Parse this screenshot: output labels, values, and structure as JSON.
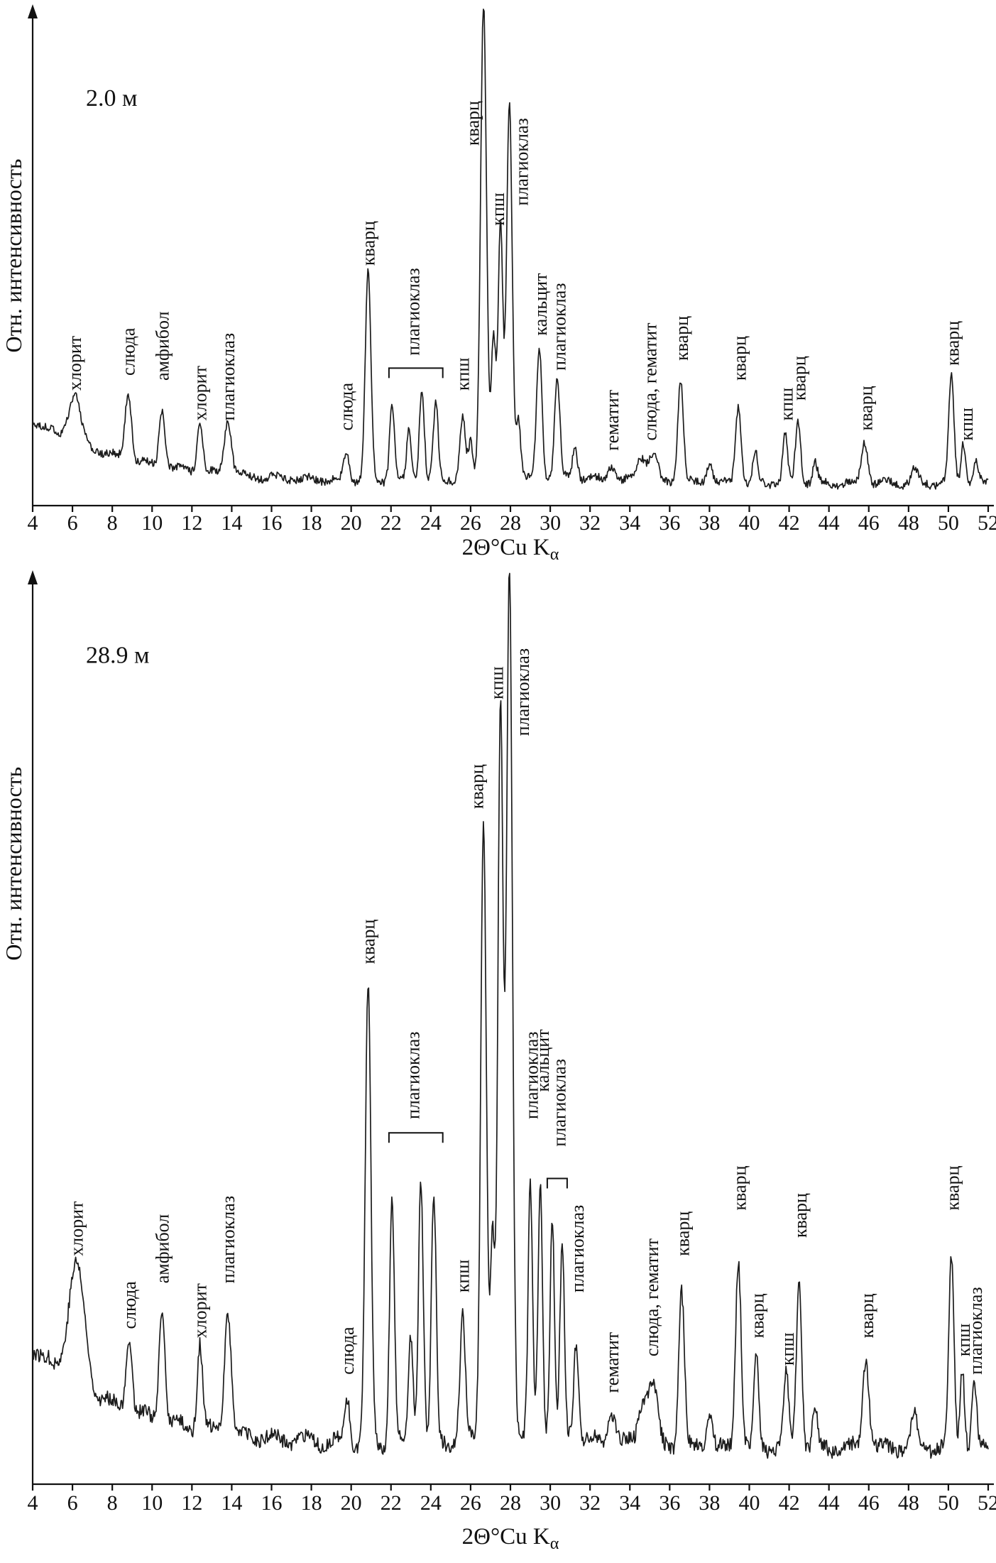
{
  "figure": {
    "y_axis_title": "Отн. интенсивность",
    "x_axis_title_main": "2Θ°Cu K",
    "x_axis_title_sub": "α",
    "x_range": [
      4,
      52
    ],
    "x_ticks": [
      4,
      6,
      8,
      10,
      12,
      14,
      16,
      18,
      20,
      22,
      24,
      26,
      28,
      30,
      32,
      34,
      36,
      38,
      40,
      42,
      44,
      46,
      48,
      50,
      52
    ],
    "ink_color": "#111111"
  },
  "chart_data": [
    {
      "type": "line",
      "title": "2.0 м",
      "xlabel": "2Θ°Cu Kα",
      "ylabel": "Отн. интенсивность",
      "xlim": [
        4,
        52
      ],
      "x_tick_step": 2,
      "grid": false,
      "legend": "none",
      "peak_columns": [
        "two_theta_deg",
        "height_frac_of_plot",
        "sigma_deg",
        "mineral"
      ],
      "peaks": [
        [
          6.1,
          0.095,
          0.3,
          "хлорит"
        ],
        [
          8.8,
          0.135,
          0.16,
          "слюда"
        ],
        [
          10.5,
          0.115,
          0.14,
          "амфибол"
        ],
        [
          12.4,
          0.095,
          0.14,
          "хлорит"
        ],
        [
          13.8,
          0.11,
          0.18,
          "плагиоклаз"
        ],
        [
          19.75,
          0.055,
          0.13,
          "слюда"
        ],
        [
          20.85,
          0.42,
          0.14,
          "кварц"
        ],
        [
          22.05,
          0.155,
          0.12,
          "плагиоклаз"
        ],
        [
          22.9,
          0.1,
          0.11,
          "плагиоклаз"
        ],
        [
          23.55,
          0.185,
          0.12,
          "плагиоклаз"
        ],
        [
          24.25,
          0.15,
          0.12,
          "плагиоклаз"
        ],
        [
          25.6,
          0.125,
          0.13,
          "кпш"
        ],
        [
          26.0,
          0.07,
          0.11,
          ""
        ],
        [
          26.65,
          0.95,
          0.15,
          "кварц"
        ],
        [
          27.15,
          0.28,
          0.11,
          ""
        ],
        [
          27.5,
          0.5,
          0.12,
          "кпш"
        ],
        [
          27.95,
          0.75,
          0.14,
          "плагиоклаз"
        ],
        [
          28.4,
          0.12,
          0.11,
          ""
        ],
        [
          29.45,
          0.26,
          0.13,
          "кальцит"
        ],
        [
          30.35,
          0.2,
          0.13,
          "плагиоклаз"
        ],
        [
          31.25,
          0.06,
          0.13,
          ""
        ],
        [
          33.1,
          0.03,
          0.18,
          "гематит"
        ],
        [
          34.6,
          0.05,
          0.25,
          "слюда, гематит"
        ],
        [
          35.2,
          0.055,
          0.2,
          "слюда, гематит"
        ],
        [
          36.55,
          0.21,
          0.14,
          "кварц"
        ],
        [
          38.0,
          0.045,
          0.14,
          ""
        ],
        [
          39.45,
          0.155,
          0.14,
          "кварц"
        ],
        [
          40.3,
          0.06,
          0.12,
          ""
        ],
        [
          41.8,
          0.095,
          0.12,
          "кпш"
        ],
        [
          42.45,
          0.125,
          0.13,
          "кварц"
        ],
        [
          43.3,
          0.04,
          0.12,
          ""
        ],
        [
          45.8,
          0.085,
          0.16,
          "кварц"
        ],
        [
          48.3,
          0.03,
          0.15,
          ""
        ],
        [
          50.15,
          0.21,
          0.13,
          "кварц"
        ],
        [
          50.75,
          0.085,
          0.11,
          "кпш"
        ],
        [
          51.4,
          0.04,
          0.12,
          ""
        ]
      ],
      "label_columns": [
        "two_theta_deg",
        "text_bottom_frac_of_plot",
        "text"
      ],
      "peak_labels": [
        [
          6.1,
          0.23,
          "хлорит"
        ],
        [
          8.8,
          0.26,
          "слюда"
        ],
        [
          10.5,
          0.25,
          "амфибол"
        ],
        [
          12.4,
          0.17,
          "хлорит"
        ],
        [
          13.8,
          0.17,
          "плагиоклаз"
        ],
        [
          19.75,
          0.15,
          "слюда"
        ],
        [
          20.85,
          0.48,
          "кварц"
        ],
        [
          23.1,
          0.3,
          "плагиоклаз"
        ],
        [
          25.6,
          0.23,
          "кпш"
        ],
        [
          26.1,
          0.72,
          "кварц"
        ],
        [
          27.35,
          0.56,
          "кпш"
        ],
        [
          28.55,
          0.6,
          "плагиоклаз"
        ],
        [
          29.5,
          0.34,
          "кальцит"
        ],
        [
          30.45,
          0.27,
          "плагиоклаз"
        ],
        [
          33.1,
          0.11,
          "гематит"
        ],
        [
          35.0,
          0.13,
          "слюда, гематит"
        ],
        [
          36.6,
          0.29,
          "кварц"
        ],
        [
          39.5,
          0.25,
          "кварц"
        ],
        [
          41.85,
          0.17,
          "кпш"
        ],
        [
          42.5,
          0.21,
          "кварц"
        ],
        [
          45.85,
          0.15,
          "кварц"
        ],
        [
          50.2,
          0.28,
          "кварц"
        ],
        [
          50.9,
          0.13,
          "кпш"
        ]
      ],
      "brackets": [
        {
          "x1": 21.9,
          "x2": 24.6,
          "y": 0.275
        }
      ]
    },
    {
      "type": "line",
      "title": "28.9 м",
      "xlabel": "2Θ°Cu Kα",
      "ylabel": "Отн. интенсивность",
      "xlim": [
        4,
        52
      ],
      "x_tick_step": 2,
      "grid": false,
      "legend": "none",
      "peak_columns": [
        "two_theta_deg",
        "height_frac_of_plot",
        "sigma_deg",
        "mineral"
      ],
      "peaks": [
        [
          6.2,
          0.13,
          0.4,
          "хлорит"
        ],
        [
          8.85,
          0.085,
          0.14,
          "слюда"
        ],
        [
          10.5,
          0.125,
          0.14,
          "амфибол"
        ],
        [
          12.4,
          0.095,
          0.13,
          "хлорит"
        ],
        [
          13.8,
          0.135,
          0.17,
          "плагиоклаз"
        ],
        [
          19.8,
          0.05,
          0.13,
          "слюда"
        ],
        [
          20.85,
          0.5,
          0.14,
          "кварц"
        ],
        [
          22.05,
          0.27,
          0.12,
          "плагиоклаз"
        ],
        [
          23.0,
          0.12,
          0.11,
          "плагиоклаз"
        ],
        [
          23.5,
          0.29,
          0.12,
          "плагиоклаз"
        ],
        [
          24.15,
          0.27,
          0.12,
          "плагиоклаз"
        ],
        [
          25.6,
          0.135,
          0.13,
          "кпш"
        ],
        [
          26.65,
          0.68,
          0.14,
          "кварц"
        ],
        [
          27.1,
          0.22,
          0.11,
          ""
        ],
        [
          27.5,
          0.8,
          0.13,
          "кпш"
        ],
        [
          27.95,
          0.95,
          0.15,
          "плагиоклаз"
        ],
        [
          29.0,
          0.27,
          0.11,
          "плагиоклаз"
        ],
        [
          29.5,
          0.28,
          0.11,
          "кальцит"
        ],
        [
          30.1,
          0.24,
          0.11,
          "плагиоклаз"
        ],
        [
          30.6,
          0.21,
          0.11,
          "плагиоклаз"
        ],
        [
          31.3,
          0.11,
          0.12,
          "плагиоклаз"
        ],
        [
          33.1,
          0.035,
          0.18,
          "гематит"
        ],
        [
          34.7,
          0.05,
          0.25,
          "слюда, гематит"
        ],
        [
          35.2,
          0.06,
          0.2,
          "слюда, гематит"
        ],
        [
          36.6,
          0.17,
          0.14,
          "кварц"
        ],
        [
          38.0,
          0.04,
          0.14,
          ""
        ],
        [
          39.45,
          0.21,
          0.14,
          "кварц"
        ],
        [
          40.35,
          0.1,
          0.12,
          "кварц"
        ],
        [
          41.85,
          0.08,
          0.12,
          "кпш"
        ],
        [
          42.5,
          0.19,
          0.13,
          "кварц"
        ],
        [
          43.3,
          0.04,
          0.12,
          ""
        ],
        [
          45.85,
          0.1,
          0.16,
          "кварц"
        ],
        [
          48.3,
          0.035,
          0.15,
          ""
        ],
        [
          50.15,
          0.21,
          0.13,
          "кварц"
        ],
        [
          50.7,
          0.09,
          0.11,
          "кпш"
        ],
        [
          51.3,
          0.065,
          0.12,
          "плагиоклаз"
        ]
      ],
      "label_columns": [
        "two_theta_deg",
        "text_bottom_frac_of_plot",
        "text"
      ],
      "peak_labels": [
        [
          6.2,
          0.25,
          "хлорит"
        ],
        [
          8.85,
          0.17,
          "слюда"
        ],
        [
          10.5,
          0.22,
          "амфибол"
        ],
        [
          12.4,
          0.16,
          "хлорит"
        ],
        [
          13.8,
          0.22,
          "плагиоклаз"
        ],
        [
          19.8,
          0.12,
          "слюда"
        ],
        [
          20.85,
          0.57,
          "кварц"
        ],
        [
          23.1,
          0.4,
          "плагиоклаз"
        ],
        [
          25.6,
          0.21,
          "кпш"
        ],
        [
          26.3,
          0.74,
          "кварц"
        ],
        [
          27.3,
          0.86,
          "кпш"
        ],
        [
          28.6,
          0.82,
          "плагиоклаз"
        ],
        [
          29.05,
          0.4,
          "плагиоклаз"
        ],
        [
          29.6,
          0.43,
          "кальцит"
        ],
        [
          30.45,
          0.37,
          "плагиоклаз"
        ],
        [
          31.35,
          0.21,
          "плагиоклаз"
        ],
        [
          33.1,
          0.1,
          "гематит"
        ],
        [
          35.1,
          0.14,
          "слюда, гематит"
        ],
        [
          36.65,
          0.25,
          "кварц"
        ],
        [
          39.5,
          0.3,
          "кварц"
        ],
        [
          40.4,
          0.16,
          "кварц"
        ],
        [
          41.9,
          0.13,
          "кпш"
        ],
        [
          42.55,
          0.27,
          "кварц"
        ],
        [
          45.9,
          0.16,
          "кварц"
        ],
        [
          50.2,
          0.3,
          "кварц"
        ],
        [
          50.75,
          0.14,
          "кпш"
        ],
        [
          51.35,
          0.12,
          "плагиоклаз"
        ]
      ],
      "brackets": [
        {
          "x1": 21.9,
          "x2": 24.6,
          "y": 0.385
        },
        {
          "x1": 29.85,
          "x2": 30.85,
          "y": 0.335
        }
      ]
    }
  ]
}
